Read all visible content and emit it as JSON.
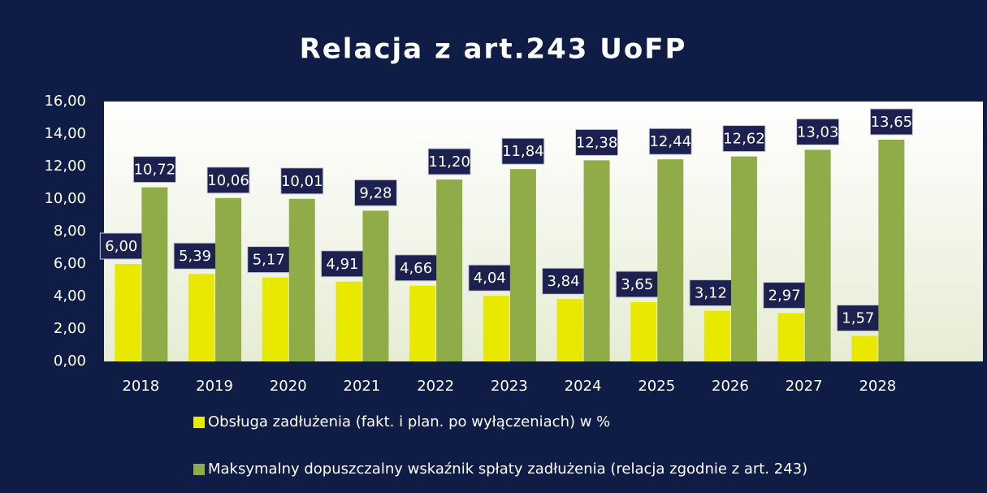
{
  "chart_data": {
    "type": "bar",
    "title": "Relacja z art.243 UoFP",
    "categories": [
      "2018",
      "2019",
      "2020",
      "2021",
      "2022",
      "2023",
      "2024",
      "2025",
      "2026",
      "2027",
      "2028"
    ],
    "series": [
      {
        "name": "Obsługa zadłużenia (fakt. i plan. po wyłączeniach) w %",
        "color": "#e8e800",
        "values": [
          6.0,
          5.39,
          5.17,
          4.91,
          4.66,
          4.04,
          3.84,
          3.65,
          3.12,
          2.97,
          1.57
        ],
        "value_labels": [
          "6,00",
          "5,39",
          "5,17",
          "4,91",
          "4,66",
          "4,04",
          "3,84",
          "3,65",
          "3,12",
          "2,97",
          "1,57"
        ]
      },
      {
        "name": "Maksymalny dopuszczalny wskaźnik spłaty  zadłużenia (relacja zgodnie z art. 243)",
        "color": "#8fac48",
        "values": [
          10.72,
          10.06,
          10.01,
          9.28,
          11.2,
          11.84,
          12.38,
          12.44,
          12.62,
          13.03,
          13.65
        ],
        "value_labels": [
          "10,72",
          "10,06",
          "10,01",
          "9,28",
          "11,20",
          "11,84",
          "12,38",
          "12,44",
          "12,62",
          "13,03",
          "13,65"
        ]
      }
    ],
    "ylim": [
      0,
      16
    ],
    "yticks": [
      {
        "value": 0,
        "label": "0,00"
      },
      {
        "value": 2,
        "label": "2,00"
      },
      {
        "value": 4,
        "label": "4,00"
      },
      {
        "value": 6,
        "label": "6,00"
      },
      {
        "value": 8,
        "label": "8,00"
      },
      {
        "value": 10,
        "label": "10,00"
      },
      {
        "value": 12,
        "label": "12,00"
      },
      {
        "value": 14,
        "label": "14,00"
      },
      {
        "value": 16,
        "label": "16,00"
      }
    ],
    "legend": "bottom"
  }
}
